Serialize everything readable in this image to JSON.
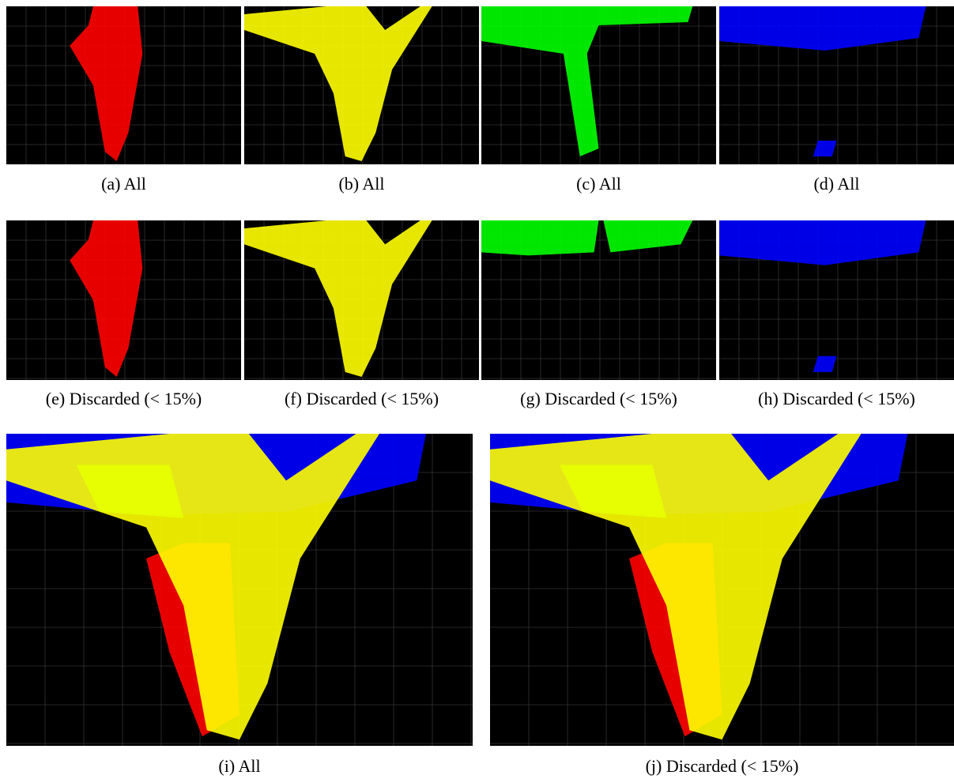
{
  "panels": [
    {
      "caption": "(a) All"
    },
    {
      "caption": "(b) All"
    },
    {
      "caption": "(c) All"
    },
    {
      "caption": "(d) All"
    },
    {
      "caption": "(e) Discarded (< 15%)"
    },
    {
      "caption": "(f) Discarded (< 15%)"
    },
    {
      "caption": "(g) Discarded (< 15%)"
    },
    {
      "caption": "(h) Discarded (< 15%)"
    },
    {
      "caption": "(i) All"
    },
    {
      "caption": "(j) Discarded (< 15%)"
    }
  ]
}
